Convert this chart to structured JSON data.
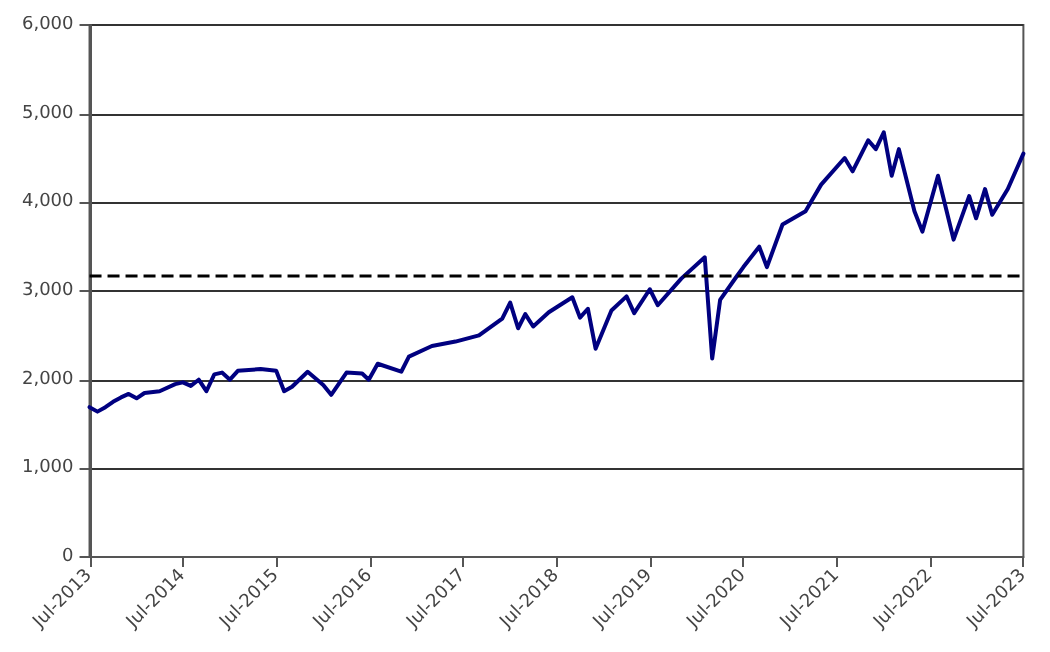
{
  "chart_data": {
    "type": "line",
    "line_style": "solid",
    "marker": "none",
    "grid": "y",
    "xlim": [
      "2013-07-01",
      "2023-07-01"
    ],
    "xticks": [
      {
        "value": "2013-07-01",
        "label": "Jul-2013"
      },
      {
        "value": "2014-07-01",
        "label": "Jul-2014"
      },
      {
        "value": "2015-07-01",
        "label": "Jul-2015"
      },
      {
        "value": "2016-07-01",
        "label": "Jul-2016"
      },
      {
        "value": "2017-07-01",
        "label": "Jul-2017"
      },
      {
        "value": "2018-07-01",
        "label": "Jul-2018"
      },
      {
        "value": "2019-07-01",
        "label": "Jul-2019"
      },
      {
        "value": "2020-07-01",
        "label": "Jul-2020"
      },
      {
        "value": "2021-07-01",
        "label": "Jul-2021"
      },
      {
        "value": "2022-07-01",
        "label": "Jul-2022"
      },
      {
        "value": "2023-07-01",
        "label": "Jul-2023"
      }
    ],
    "ylim": [
      0,
      6000
    ],
    "yticks": [
      {
        "value": 0,
        "label": "0"
      },
      {
        "value": 1000,
        "label": "1,000"
      },
      {
        "value": 2000,
        "label": "2,000"
      },
      {
        "value": 3000,
        "label": "3,000"
      },
      {
        "value": 4000,
        "label": "4,000"
      },
      {
        "value": 5000,
        "label": "5,000"
      },
      {
        "value": 6000,
        "label": "6,000"
      }
    ],
    "ref_lines": [
      {
        "axis": "y",
        "value": 3170,
        "color": "#000000",
        "line_style": "dashed"
      }
    ],
    "series": [
      {
        "color": "#000080",
        "x": [
          "2013-07",
          "2013-08",
          "2013-09",
          "2013-10",
          "2013-11",
          "2013-12",
          "2014-01",
          "2014-02",
          "2014-04",
          "2014-06",
          "2014-07",
          "2014-08",
          "2014-09",
          "2014-10",
          "2014-11",
          "2014-12",
          "2015-01",
          "2015-02",
          "2015-05",
          "2015-07",
          "2015-08",
          "2015-09",
          "2015-11",
          "2016-01",
          "2016-02",
          "2016-04",
          "2016-06",
          "2016-06-27",
          "2016-08",
          "2016-11",
          "2016-12",
          "2017-03",
          "2017-06",
          "2017-09",
          "2017-12",
          "2018-01",
          "2018-02",
          "2018-03",
          "2018-04",
          "2018-06",
          "2018-09",
          "2018-10",
          "2018-11",
          "2018-12",
          "2019-02",
          "2019-04",
          "2019-05",
          "2019-07",
          "2019-08",
          "2019-11",
          "2020-02",
          "2020-03",
          "2020-04",
          "2020-06",
          "2020-07",
          "2020-09",
          "2020-10",
          "2020-12",
          "2021-03",
          "2021-05",
          "2021-08",
          "2021-09",
          "2021-11",
          "2021-12",
          "2022-01",
          "2022-02",
          "2022-03",
          "2022-05",
          "2022-06",
          "2022-08",
          "2022-10",
          "2022-12",
          "2022-12-28",
          "2023-02",
          "2023-03",
          "2023-05",
          "2023-07"
        ],
        "values": [
          1690,
          1640,
          1690,
          1750,
          1800,
          1840,
          1790,
          1850,
          1870,
          1950,
          1970,
          1930,
          2000,
          1870,
          2060,
          2080,
          2000,
          2100,
          2120,
          2100,
          1870,
          1920,
          2090,
          1940,
          1830,
          2080,
          2070,
          2000,
          2180,
          2090,
          2260,
          2380,
          2430,
          2500,
          2690,
          2870,
          2580,
          2740,
          2600,
          2760,
          2930,
          2700,
          2800,
          2350,
          2780,
          2940,
          2750,
          3020,
          2840,
          3140,
          3380,
          2240,
          2900,
          3150,
          3270,
          3500,
          3270,
          3750,
          3900,
          4200,
          4500,
          4350,
          4700,
          4600,
          4790,
          4300,
          4600,
          3900,
          3670,
          4300,
          3580,
          4070,
          3820,
          4150,
          3860,
          4150,
          4550
        ]
      }
    ]
  }
}
